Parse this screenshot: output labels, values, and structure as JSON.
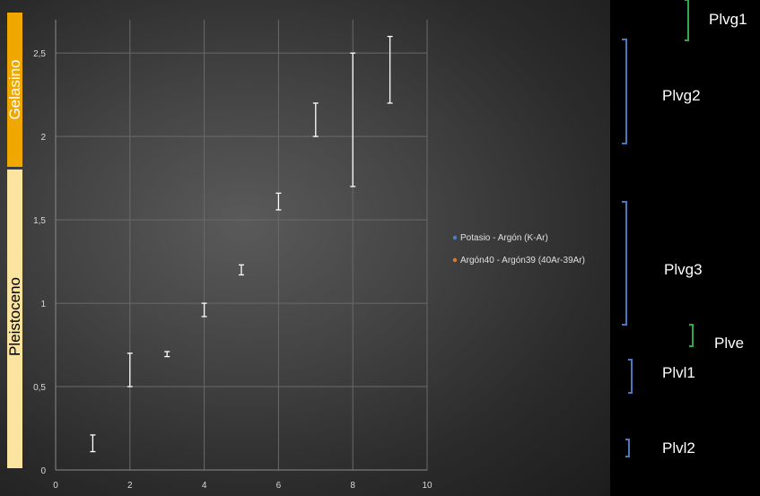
{
  "stages": {
    "gelasino": {
      "label": "Gelasino",
      "color": "#f0a800"
    },
    "pleistoceno": {
      "label": "Pleistoceno",
      "color": "#fbe3a0"
    }
  },
  "legend": [
    {
      "label": "Potasio - Argón (K-Ar)",
      "color": "#4a7fc8"
    },
    {
      "label": "Argón40 - Argón39 (40Ar-39Ar)",
      "color": "#e07a2c"
    }
  ],
  "units": [
    {
      "label": "Plvg1",
      "bracket_color": "#2eaa4a"
    },
    {
      "label": "Plvg2",
      "bracket_color": "#4a78c0"
    },
    {
      "label": "Plvg3",
      "bracket_color": "#4a78c0"
    },
    {
      "label": "Plve",
      "bracket_color": "#2eaa4a"
    },
    {
      "label": "Plvl1",
      "bracket_color": "#4a78c0"
    },
    {
      "label": "Plvl2",
      "bracket_color": "#4a78c0"
    }
  ],
  "chart_data": {
    "type": "scatter",
    "title": "",
    "xlabel": "",
    "ylabel": "",
    "xlim": [
      0,
      10
    ],
    "ylim": [
      0,
      2.7
    ],
    "x_ticks": [
      "0",
      "2",
      "4",
      "6",
      "8",
      "10"
    ],
    "y_ticks": [
      "0",
      "0,5",
      "1",
      "1,5",
      "2",
      "2,5"
    ],
    "grid": true,
    "legend_position": "right",
    "series": [
      {
        "name": "Potasio - Argón (K-Ar)",
        "color": "#4a7fc8",
        "points": [
          {
            "x": 1,
            "y_low": 0.11,
            "y_high": 0.21
          },
          {
            "x": 2,
            "y_low": 0.5,
            "y_high": 0.7
          },
          {
            "x": 3,
            "y_low": 0.68,
            "y_high": 0.71
          },
          {
            "x": 4,
            "y_low": 0.92,
            "y_high": 1.0
          },
          {
            "x": 5,
            "y_low": 1.17,
            "y_high": 1.23
          },
          {
            "x": 6,
            "y_low": 1.56,
            "y_high": 1.66
          },
          {
            "x": 7,
            "y_low": 2.0,
            "y_high": 2.2
          },
          {
            "x": 8,
            "y_low": 1.7,
            "y_high": 2.5
          },
          {
            "x": 9,
            "y_low": 2.2,
            "y_high": 2.6
          }
        ]
      },
      {
        "name": "Argón40 - Argón39 (40Ar-39Ar)",
        "color": "#e07a2c",
        "points": []
      }
    ]
  }
}
